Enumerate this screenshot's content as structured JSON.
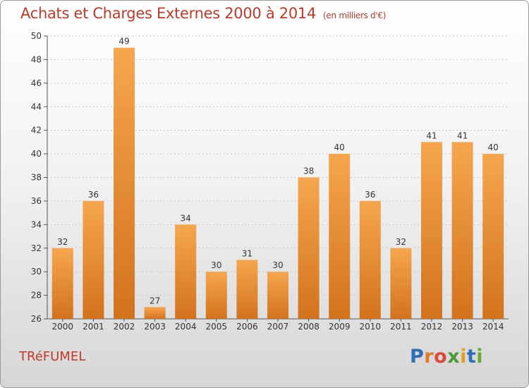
{
  "chart_data": {
    "type": "bar",
    "title": "Achats et Charges Externes 2000 à 2014",
    "subtitle": "(en milliers d'€)",
    "categories": [
      "2000",
      "2001",
      "2002",
      "2003",
      "2004",
      "2005",
      "2006",
      "2007",
      "2008",
      "2009",
      "2010",
      "2011",
      "2012",
      "2013",
      "2014"
    ],
    "values": [
      32,
      36,
      49,
      27,
      34,
      30,
      31,
      30,
      38,
      40,
      36,
      32,
      41,
      41,
      40
    ],
    "ylim": [
      26,
      50
    ],
    "yticks": [
      26,
      28,
      30,
      32,
      34,
      36,
      38,
      40,
      42,
      44,
      46,
      48,
      50
    ],
    "grid": true,
    "bar_color": "#f0902f"
  },
  "commune": "TRéFUMEL",
  "logo": {
    "letters": [
      "P",
      "r",
      "o",
      "x",
      "i",
      "t",
      "i"
    ],
    "colors": [
      "#2f6db5",
      "#e07b2a",
      "#d94b3a",
      "#4a9a3a",
      "#e0a020",
      "#2f6db5",
      "#6aaa30"
    ]
  }
}
